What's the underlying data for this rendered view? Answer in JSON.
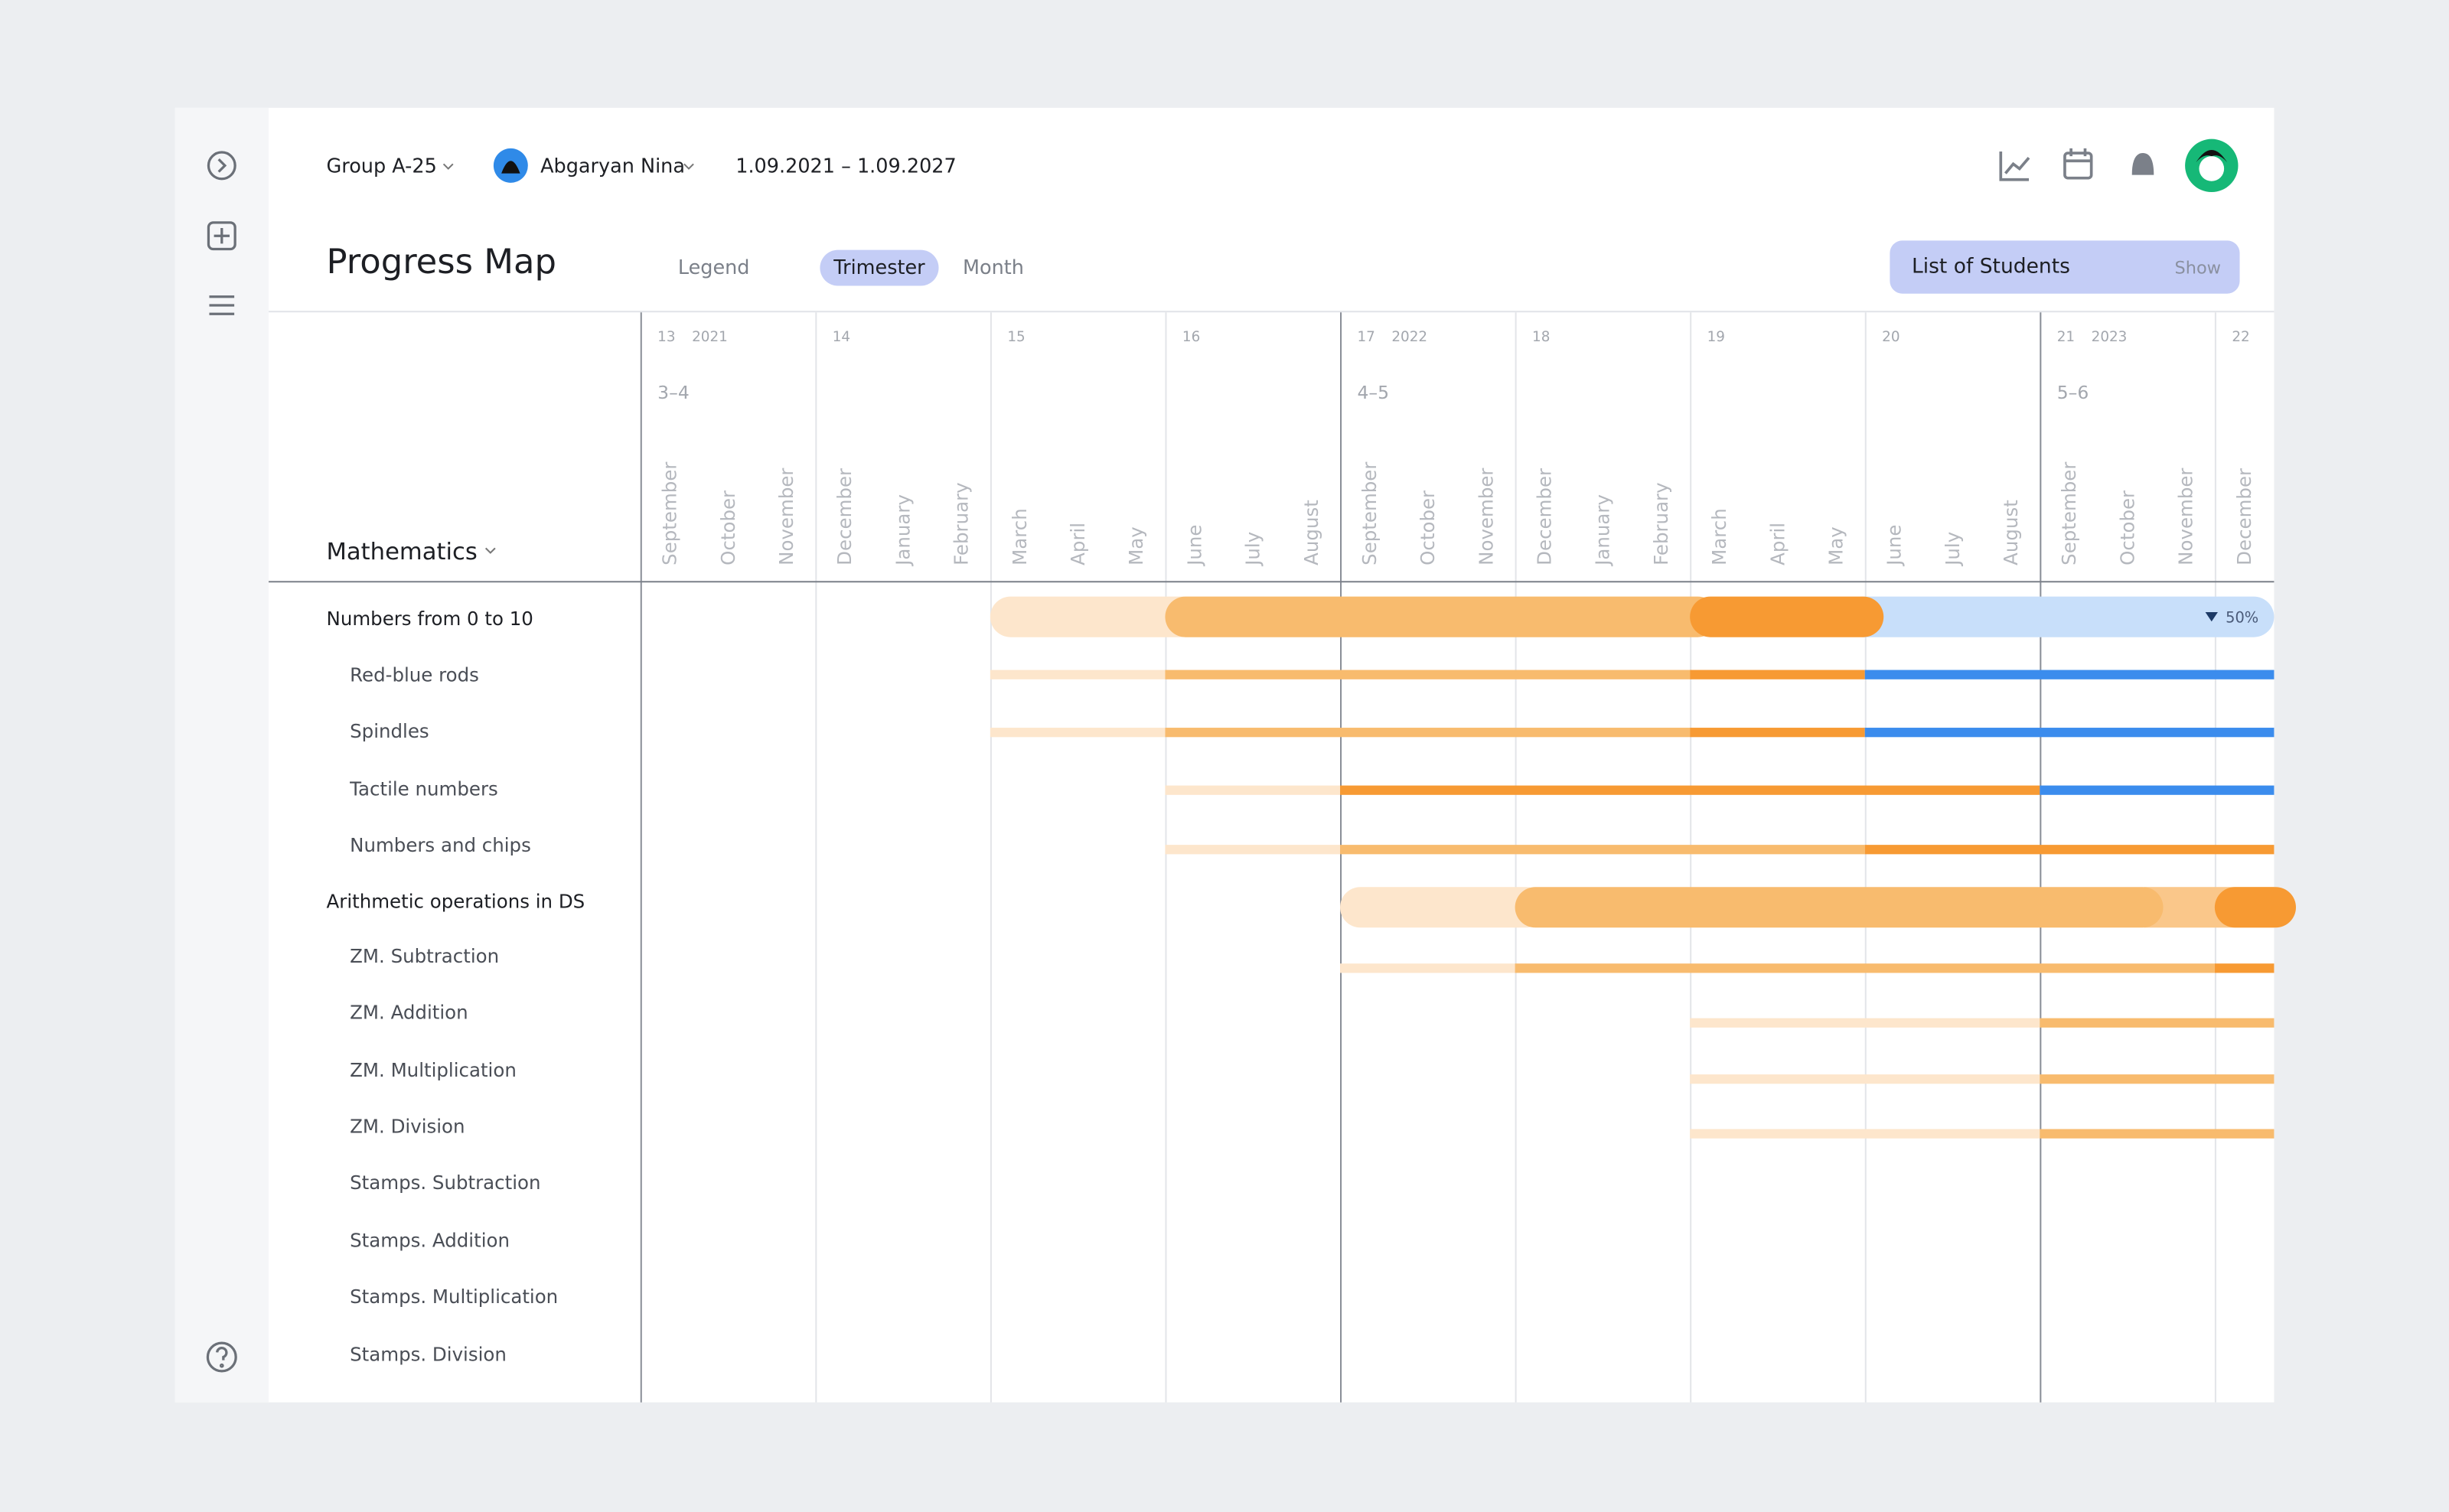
{
  "header": {
    "group": "Group A-25",
    "student": "Abgaryan Nina",
    "date_range": "1.09.2021 – 1.09.2027"
  },
  "title": "Progress Map",
  "tabs": [
    "Legend",
    "Trimester",
    "Month"
  ],
  "students_panel": {
    "title": "List of Students",
    "action": "Show"
  },
  "subject": "Mathematics",
  "timeline": {
    "weeks": [
      "13",
      "14",
      "15",
      "16",
      "17",
      "18",
      "19",
      "20",
      "21",
      "22"
    ],
    "years": [
      {
        "column": "13",
        "label": "2021"
      },
      {
        "column": "17",
        "label": "2022"
      },
      {
        "column": "21",
        "label": "2023"
      }
    ],
    "trimesters": [
      {
        "column": "13",
        "label": "3–4"
      },
      {
        "column": "17",
        "label": "4–5"
      },
      {
        "column": "21",
        "label": "5–6"
      }
    ],
    "months": [
      "September",
      "October",
      "November",
      "December",
      "January",
      "February",
      "March",
      "April",
      "May",
      "June",
      "July",
      "August",
      "September",
      "October",
      "November",
      "December",
      "January",
      "February",
      "March",
      "April",
      "May",
      "June",
      "July",
      "August",
      "September",
      "October",
      "November",
      "December"
    ]
  },
  "rows": [
    {
      "label": "Numbers from 0 to 10",
      "level": 0
    },
    {
      "label": "Red-blue rods",
      "level": 1
    },
    {
      "label": "Spindles",
      "level": 1
    },
    {
      "label": "Tactile numbers",
      "level": 1
    },
    {
      "label": "Numbers and chips",
      "level": 1
    },
    {
      "label": "Arithmetic operations in DS",
      "level": 0
    },
    {
      "label": "ZM. Subtraction",
      "level": 1
    },
    {
      "label": "ZM. Addition",
      "level": 1
    },
    {
      "label": "ZM. Multiplication",
      "level": 1
    },
    {
      "label": "ZM. Division",
      "level": 1
    },
    {
      "label": "Stamps. Subtraction",
      "level": 1
    },
    {
      "label": "Stamps. Addition",
      "level": 1
    },
    {
      "label": "Stamps. Multiplication",
      "level": 1
    },
    {
      "label": "Stamps. Division",
      "level": 1
    }
  ],
  "progress_label": "50%"
}
